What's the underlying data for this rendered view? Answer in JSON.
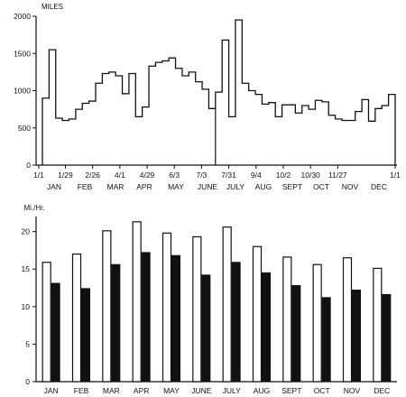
{
  "chart_data": [
    {
      "type": "line",
      "step": true,
      "ylabel": "MILES",
      "ylim": [
        0,
        2000
      ],
      "y_ticks": [
        "0",
        "500",
        "1000",
        "1500",
        "2000"
      ],
      "x_tick_labels": [
        "1/1",
        "1/29",
        "2/26",
        "4/1",
        "4/29",
        "6/3",
        "7/3",
        "7/31",
        "9/4",
        "10/2",
        "10/30",
        "11/27",
        "1/1"
      ],
      "months": [
        "JAN",
        "FEB",
        "MAR",
        "APR",
        "MAY",
        "JUNE",
        "JULY",
        "AUG",
        "SEPT",
        "OCT",
        "NOV",
        "DEC"
      ],
      "grid": false,
      "legend": "none",
      "period": "weekly",
      "values": [
        900,
        1550,
        630,
        600,
        620,
        750,
        830,
        860,
        1100,
        1230,
        1250,
        1200,
        960,
        1230,
        650,
        780,
        1330,
        1380,
        1400,
        1440,
        1300,
        1200,
        1250,
        1120,
        1020,
        760,
        980,
        1680,
        650,
        1950,
        1100,
        1000,
        950,
        820,
        840,
        650,
        810,
        810,
        700,
        800,
        750,
        870,
        850,
        670,
        620,
        600,
        600,
        720,
        880,
        590,
        760,
        800,
        950
      ]
    },
    {
      "type": "bar",
      "ylabel": "Mi./Hr.",
      "ylim": [
        0,
        22
      ],
      "y_ticks": [
        "0",
        "5",
        "10",
        "15",
        "20"
      ],
      "categories": [
        "JAN",
        "FEB",
        "MAR",
        "APR",
        "MAY",
        "JUNE",
        "JULY",
        "AUG",
        "SEPT",
        "OCT",
        "NOV",
        "DEC"
      ],
      "grid": false,
      "legend": "none",
      "series": [
        {
          "fill": "#ffffff",
          "values": [
            15.9,
            17.0,
            20.1,
            21.3,
            19.8,
            19.3,
            20.6,
            18.0,
            16.6,
            15.6,
            16.5,
            15.1
          ]
        },
        {
          "fill": "#111111",
          "values": [
            13.1,
            12.4,
            15.6,
            17.2,
            16.8,
            14.2,
            15.9,
            14.5,
            12.8,
            11.2,
            12.2,
            11.6
          ]
        }
      ]
    }
  ]
}
